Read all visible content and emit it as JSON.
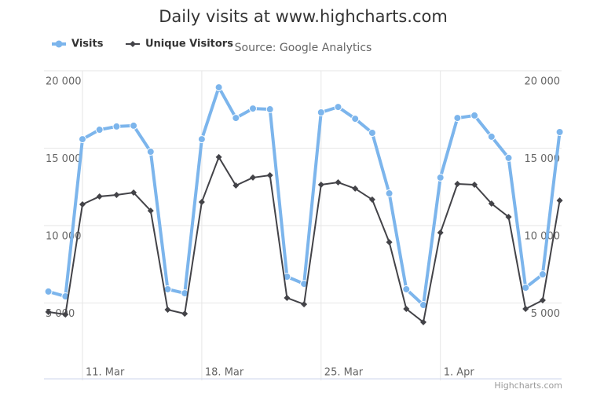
{
  "chart_data": {
    "type": "line",
    "title": "Daily visits at www.highcharts.com",
    "subtitle": "Source: Google Analytics",
    "credit": "Highcharts.com",
    "categories": [
      null,
      null,
      "11. Mar",
      null,
      null,
      null,
      null,
      null,
      null,
      "18. Mar",
      null,
      null,
      null,
      null,
      null,
      null,
      "25. Mar",
      null,
      null,
      null,
      null,
      null,
      null,
      "1. Apr",
      null,
      null,
      null,
      null,
      null,
      null,
      null
    ],
    "series": [
      {
        "name": "Visits",
        "color": "#7cb5ec",
        "values": [
          5740,
          5430,
          15580,
          16190,
          16400,
          16450,
          14770,
          5890,
          5630,
          15580,
          18930,
          16950,
          17560,
          17510,
          6700,
          6240,
          17310,
          17660,
          16900,
          15990,
          12080,
          5890,
          4870,
          13100,
          16950,
          17110,
          15740,
          14370,
          5990,
          6850,
          16040
        ]
      },
      {
        "name": "Unique Visitors",
        "color": "#434348",
        "values": [
          4420,
          4260,
          11370,
          11880,
          11980,
          12130,
          10960,
          4570,
          4310,
          11520,
          14420,
          12590,
          13100,
          13250,
          5330,
          4920,
          12640,
          12790,
          12390,
          11680,
          8930,
          4620,
          3760,
          9540,
          12690,
          12640,
          11420,
          10560,
          4620,
          5180,
          11620
        ]
      }
    ],
    "ylim": [
      0,
      20000
    ],
    "yticks": [
      {
        "value": 5000,
        "label": "5 000"
      },
      {
        "value": 10000,
        "label": "10 000"
      },
      {
        "value": 15000,
        "label": "15 000"
      },
      {
        "value": 20000,
        "label": "20 000"
      }
    ],
    "grid": true
  }
}
